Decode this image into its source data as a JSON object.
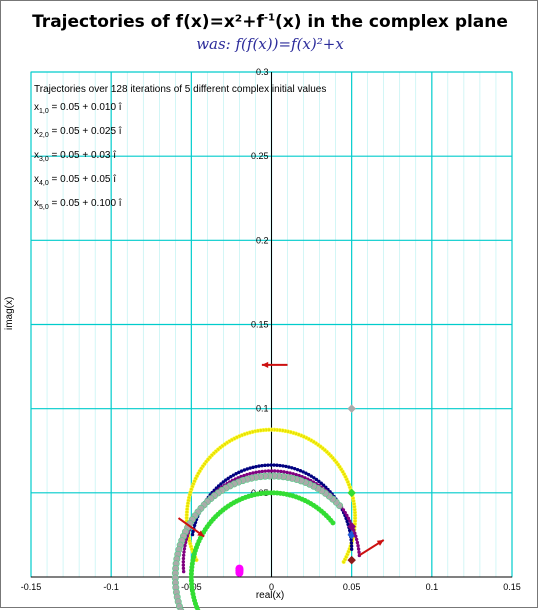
{
  "chart_data": {
    "type": "scatter",
    "title_prefix": "Trajectories of f(x)=x²+f",
    "title_sup": "-1",
    "title_suffix": "(x)   in the complex plane",
    "subtitle": "was:  f(f(x))=f(x)²+x",
    "xlabel": "real(x)",
    "ylabel": "imag(x)",
    "xlim": [
      -0.15,
      0.15
    ],
    "ylim": [
      0,
      0.3
    ],
    "xticks": [
      "-0.15",
      "-0.1",
      "-0.05",
      "0",
      "0.05",
      "0.1",
      "0.15"
    ],
    "yticks": [
      "0.05",
      "0.1",
      "0.15",
      "0.2",
      "0.25",
      "0.3"
    ],
    "xtick_values": [
      -0.15,
      -0.1,
      -0.05,
      0,
      0.05,
      0.1,
      0.15
    ],
    "ytick_values": [
      0.05,
      0.1,
      0.15,
      0.2,
      0.25,
      0.3
    ],
    "grid": true,
    "info_title": "Trajectories over 128 iterations of 5 different complex initial values",
    "initial_values": [
      {
        "sym": "x",
        "sub": "1,0",
        "text": " = 0.05 + 0.010 î"
      },
      {
        "sym": "x",
        "sub": "2,0",
        "text": " = 0.05 + 0.025 î"
      },
      {
        "sym": "x",
        "sub": "3,0",
        "text": " = 0.05 + 0.03 î"
      },
      {
        "sym": "x",
        "sub": "4,0",
        "text": " = 0.05 + 0.05 î"
      },
      {
        "sym": "x",
        "sub": "5,0",
        "text": " = 0.05 + 0.100 î"
      }
    ],
    "series": [
      {
        "center": [
          0.0,
          0.035
        ],
        "radius_start": 0.052,
        "radius_end": 0.053,
        "angle_start": -30,
        "angle_end": 208,
        "points": 128,
        "color": "#ffff44",
        "marker": "#e8e000",
        "marker_size": 1.8,
        "start": [
          0.05,
          0.01
        ],
        "start_color": "#8b1a1a",
        "end": [
          -0.02,
          0.0025
        ],
        "end_color": "#ff00ff"
      },
      {
        "center": [
          0.0,
          0.0165
        ],
        "radius_start": 0.05,
        "radius_end": 0.05,
        "angle_start": 0,
        "angle_end": 170,
        "points": 80,
        "color": "#000080",
        "marker": "#000080",
        "marker_size": 1.4,
        "start": [
          0.05,
          0.025
        ],
        "start_color": "#1f5ad8",
        "end": [
          -0.02,
          0.004
        ],
        "end_color": "#ff00ff"
      },
      {
        "center": [
          0.0,
          0.008
        ],
        "radius_start": 0.055,
        "radius_end": 0.055,
        "angle_start": 5,
        "angle_end": 185,
        "points": 90,
        "color": "#800080",
        "marker": "#800080",
        "marker_size": 1.4,
        "start": [
          0.05,
          0.03
        ],
        "start_color": "#800080",
        "end": [
          -0.02,
          0.004
        ],
        "end_color": "#ff00ff"
      },
      {
        "center": [
          0.0,
          0.0
        ],
        "radius_start": 0.05,
        "radius_end": 0.05,
        "angle_start": 40,
        "angle_end": 210,
        "points": 75,
        "color": "#33dd33",
        "marker": "#33dd33",
        "marker_size": 2.2,
        "start": [
          0.05,
          0.05
        ],
        "start_color": "#33dd33",
        "end": [
          -0.02,
          0.005
        ],
        "end_color": "#ff00ff"
      },
      {
        "center": [
          0.0,
          0.0
        ],
        "radius_start": 0.06,
        "radius_end": 0.06,
        "angle_start": 45,
        "angle_end": 205,
        "points": 60,
        "color": "#55cc88",
        "marker": "#aaaaaa",
        "marker_size": 3.2,
        "start": [
          0.05,
          0.1
        ],
        "start_color": "#aaaaaa",
        "end": [
          -0.02,
          0.004
        ],
        "end_color": "#ff00ff"
      }
    ],
    "arrows": [
      {
        "from": [
          0.055,
          0.013
        ],
        "to": [
          0.07,
          0.022
        ],
        "color": "#cc1111"
      },
      {
        "from": [
          -0.058,
          0.035
        ],
        "to": [
          -0.042,
          0.024
        ],
        "color": "#cc1111"
      },
      {
        "from": [
          0.01,
          0.126
        ],
        "to": [
          -0.006,
          0.126
        ],
        "color": "#cc1111"
      }
    ],
    "plot_area_bg": "#ffffff",
    "grid_color": "#00cccc"
  }
}
